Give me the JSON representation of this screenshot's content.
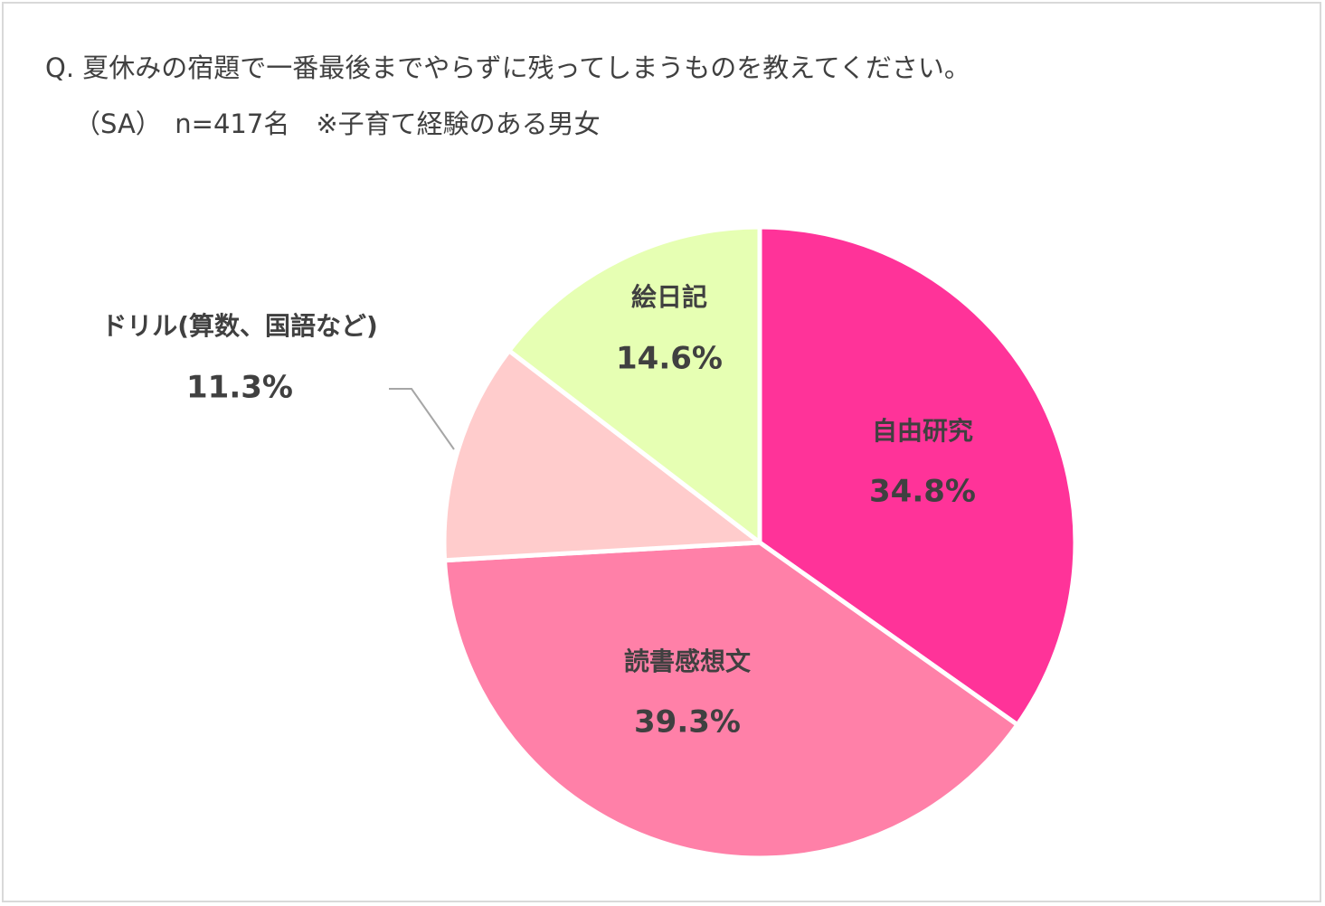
{
  "title": "Q. 夏休みの宿題で一番最後までやらずに残ってしまうものを教えてください。",
  "subtitle": "（SA）　n=417名　※子育て経験のある男女",
  "chart_data": {
    "type": "pie",
    "slices": [
      {
        "label": "自由研究",
        "value": 34.8,
        "value_label": "34.8%",
        "color": "#ff3399"
      },
      {
        "label": "読書感想文",
        "value": 39.3,
        "value_label": "39.3%",
        "color": "#ff80a8"
      },
      {
        "label": "ドリル(算数、国語など)",
        "value": 11.3,
        "value_label": "11.3%",
        "color": "#ffcccc"
      },
      {
        "label": "絵日記",
        "value": 14.6,
        "value_label": "14.6%",
        "color": "#e6ffb3"
      }
    ],
    "start_angle": "12 o'clock",
    "direction": "clockwise"
  }
}
